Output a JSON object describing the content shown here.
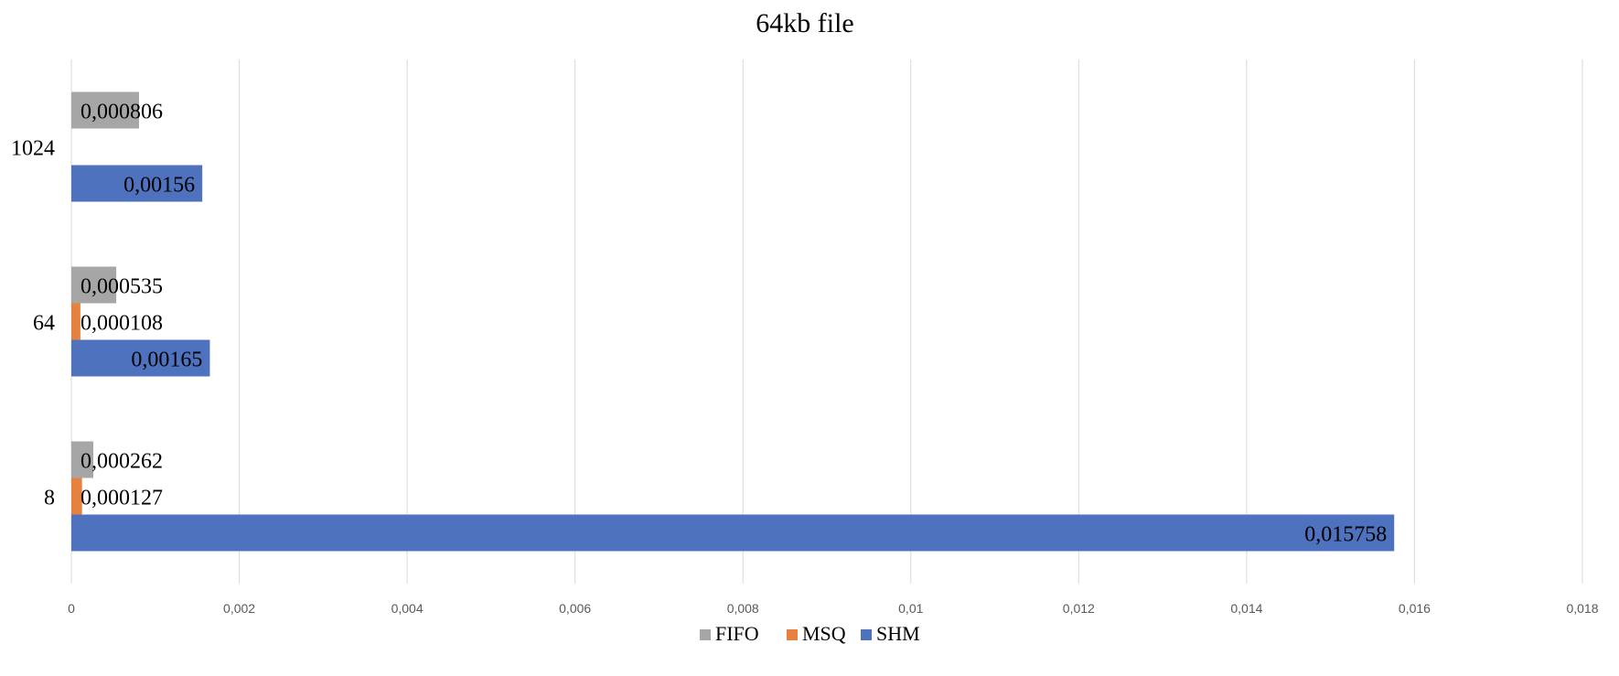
{
  "chart_data": {
    "type": "bar",
    "orientation": "horizontal",
    "title": "64kb file",
    "xlabel": "",
    "ylabel": "",
    "categories": [
      "8",
      "64",
      "1024"
    ],
    "xlim": [
      0,
      0.018
    ],
    "x_ticks": [
      0,
      0.002,
      0.004,
      0.006,
      0.008,
      0.01,
      0.012,
      0.014,
      0.016,
      0.018
    ],
    "x_tick_labels": [
      "0",
      "0,002",
      "0,004",
      "0,006",
      "0,008",
      "0,01",
      "0,012",
      "0,014",
      "0,016",
      "0,018"
    ],
    "grid": true,
    "legend_position": "bottom",
    "series": [
      {
        "name": "SHM",
        "color": "#4f72be",
        "values": [
          0.015758,
          0.00165,
          0.00156
        ],
        "labels": [
          "0,015758",
          "0,00165",
          "0,00156"
        ]
      },
      {
        "name": "MSQ",
        "color": "#e6813f",
        "values": [
          0.000127,
          0.000108,
          null
        ],
        "labels": [
          "0,000127",
          "0,000108",
          ""
        ]
      },
      {
        "name": "FIFO",
        "color": "#a6a6a6",
        "values": [
          0.000262,
          0.000535,
          0.000806
        ],
        "labels": [
          "0,000262",
          "0,000535",
          "0,000806"
        ]
      }
    ],
    "legend_order": [
      "FIFO",
      "MSQ",
      "SHM"
    ]
  }
}
